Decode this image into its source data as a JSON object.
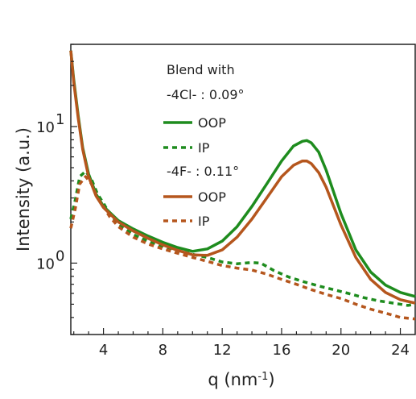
{
  "chart_data": {
    "type": "line",
    "title": "",
    "xlabel": "q (nm",
    "xlabel_sup": "-1",
    "xlabel_end": ")",
    "ylabel": "Intensity (a.u.)",
    "xlim": [
      1.8,
      25
    ],
    "ylim": [
      0.3,
      40
    ],
    "yscale": "log",
    "grid": false,
    "legend_position": "top-center",
    "x_ticks": [
      4,
      8,
      12,
      16,
      20,
      24
    ],
    "x_tick_labels": [
      "4",
      "8",
      "12",
      "16",
      "20",
      "24"
    ],
    "y_ticks": [
      1,
      10
    ],
    "y_tick_base": "10",
    "y_tick_exps": [
      "0",
      "1"
    ],
    "legend": {
      "group1_title": "Blend with",
      "group1_label": "-4Cl- : 0.09°",
      "group2_label": "-4F- : 0.11°",
      "entries": [
        "OOP",
        "IP",
        "OOP",
        "IP"
      ]
    },
    "series": [
      {
        "name": "OOP",
        "group": "-4Cl-",
        "color": "#1e8c1e",
        "dash": "solid",
        "x": [
          1.8,
          2.0,
          2.3,
          2.6,
          3.0,
          3.5,
          4.0,
          5.0,
          6.0,
          7.0,
          8.0,
          9.0,
          10.0,
          11.0,
          12.0,
          13.0,
          14.0,
          15.0,
          16.0,
          16.8,
          17.4,
          17.7,
          18.0,
          18.5,
          19.0,
          20.0,
          21.0,
          22.0,
          23.0,
          24.0,
          25.0
        ],
        "y": [
          36,
          22,
          12,
          7.0,
          4.5,
          3.2,
          2.6,
          2.05,
          1.78,
          1.58,
          1.42,
          1.3,
          1.22,
          1.27,
          1.45,
          1.85,
          2.6,
          3.8,
          5.6,
          7.2,
          7.8,
          7.9,
          7.6,
          6.5,
          4.8,
          2.3,
          1.25,
          0.86,
          0.69,
          0.61,
          0.57
        ]
      },
      {
        "name": "IP",
        "group": "-4Cl-",
        "color": "#1e8c1e",
        "dash": "dotted",
        "x": [
          1.8,
          2.1,
          2.4,
          2.8,
          3.2,
          3.6,
          4.0,
          4.4,
          5.0,
          6.0,
          7.0,
          8.0,
          9.0,
          10.0,
          11.0,
          12.0,
          13.0,
          14.0,
          14.6,
          15.5,
          16.5,
          17.5,
          18.5,
          19.5,
          20.5,
          21.5,
          22.5,
          23.5,
          24.5,
          25.0
        ],
        "y": [
          2.1,
          2.9,
          4.3,
          4.7,
          4.1,
          3.2,
          2.75,
          2.3,
          1.95,
          1.62,
          1.45,
          1.33,
          1.24,
          1.16,
          1.1,
          1.02,
          0.99,
          1.01,
          1.0,
          0.88,
          0.79,
          0.73,
          0.68,
          0.64,
          0.6,
          0.56,
          0.53,
          0.51,
          0.49,
          0.5
        ]
      },
      {
        "name": "OOP",
        "group": "-4F-",
        "color": "#b5561d",
        "dash": "solid",
        "x": [
          1.8,
          2.0,
          2.3,
          2.6,
          3.0,
          3.5,
          4.0,
          5.0,
          6.0,
          7.0,
          8.0,
          9.0,
          10.0,
          11.0,
          12.0,
          13.0,
          14.0,
          15.0,
          16.0,
          16.8,
          17.4,
          17.7,
          18.0,
          18.5,
          19.0,
          20.0,
          21.0,
          22.0,
          23.0,
          24.0,
          25.0
        ],
        "y": [
          36,
          21,
          11.5,
          6.8,
          4.3,
          3.1,
          2.55,
          2.0,
          1.72,
          1.52,
          1.36,
          1.24,
          1.15,
          1.14,
          1.25,
          1.55,
          2.1,
          3.0,
          4.3,
          5.2,
          5.6,
          5.6,
          5.35,
          4.6,
          3.6,
          1.9,
          1.1,
          0.76,
          0.61,
          0.54,
          0.51
        ]
      },
      {
        "name": "IP",
        "group": "-4F-",
        "color": "#b5561d",
        "dash": "dotted",
        "x": [
          1.8,
          2.1,
          2.4,
          2.8,
          3.2,
          3.6,
          4.0,
          4.4,
          5.0,
          6.0,
          7.0,
          8.0,
          9.0,
          10.0,
          11.0,
          12.0,
          13.0,
          14.0,
          15.0,
          16.0,
          17.0,
          18.0,
          19.0,
          20.0,
          21.0,
          22.0,
          23.0,
          24.0,
          25.0
        ],
        "y": [
          1.8,
          2.5,
          3.8,
          4.3,
          3.8,
          3.0,
          2.6,
          2.2,
          1.85,
          1.55,
          1.38,
          1.27,
          1.18,
          1.1,
          1.03,
          0.96,
          0.92,
          0.89,
          0.83,
          0.76,
          0.7,
          0.64,
          0.59,
          0.55,
          0.5,
          0.46,
          0.43,
          0.4,
          0.39
        ]
      }
    ]
  }
}
